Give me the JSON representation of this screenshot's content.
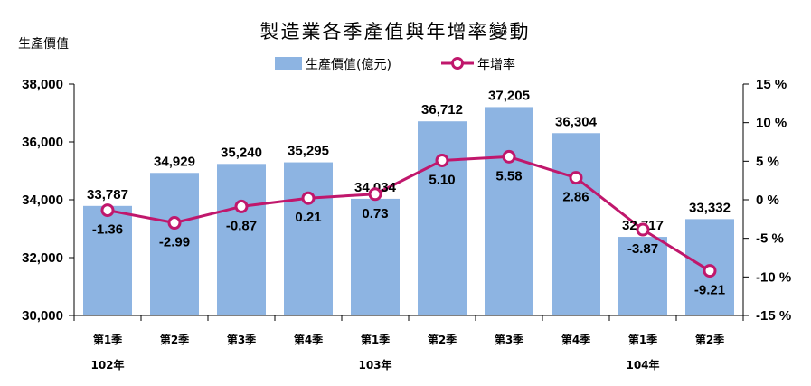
{
  "chart_data": {
    "type": "bar+line",
    "title": "製造業各季產值與年增率變動",
    "ylabel_left": "生產價值",
    "ylim_left": [
      30000,
      38000
    ],
    "yticks_left": [
      "30,000",
      "32,000",
      "34,000",
      "36,000",
      "38,000"
    ],
    "ylim_right": [
      -15,
      15
    ],
    "yticks_right": [
      "-15 %",
      "-10 %",
      "-5 %",
      "0 %",
      "5 %",
      "10 %",
      "15 %"
    ],
    "categories": [
      "第1季",
      "第2季",
      "第3季",
      "第4季",
      "第1季",
      "第2季",
      "第3季",
      "第4季",
      "第1季",
      "第2季"
    ],
    "year_labels": [
      "102年",
      "103年",
      "104年"
    ],
    "series": [
      {
        "name": "生產價值(億元)",
        "kind": "bar",
        "axis": "left",
        "color": "#8db4e2",
        "values": [
          33787,
          34929,
          35240,
          35295,
          34034,
          36712,
          37205,
          36304,
          32717,
          33332
        ],
        "labels": [
          "33,787",
          "34,929",
          "35,240",
          "35,295",
          "34,034",
          "36,712",
          "37,205",
          "36,304",
          "32,717",
          "33,332"
        ]
      },
      {
        "name": "年增率",
        "kind": "line",
        "axis": "right",
        "color": "#c0176c",
        "values": [
          -1.36,
          -2.99,
          -0.87,
          0.21,
          0.73,
          5.1,
          5.58,
          2.86,
          -3.87,
          -9.21
        ],
        "labels": [
          "-1.36",
          "-2.99",
          "-0.87",
          "0.21",
          "0.73",
          "5.10",
          "5.58",
          "2.86",
          "-3.87",
          "-9.21"
        ]
      }
    ],
    "legend_position": "top-center"
  }
}
